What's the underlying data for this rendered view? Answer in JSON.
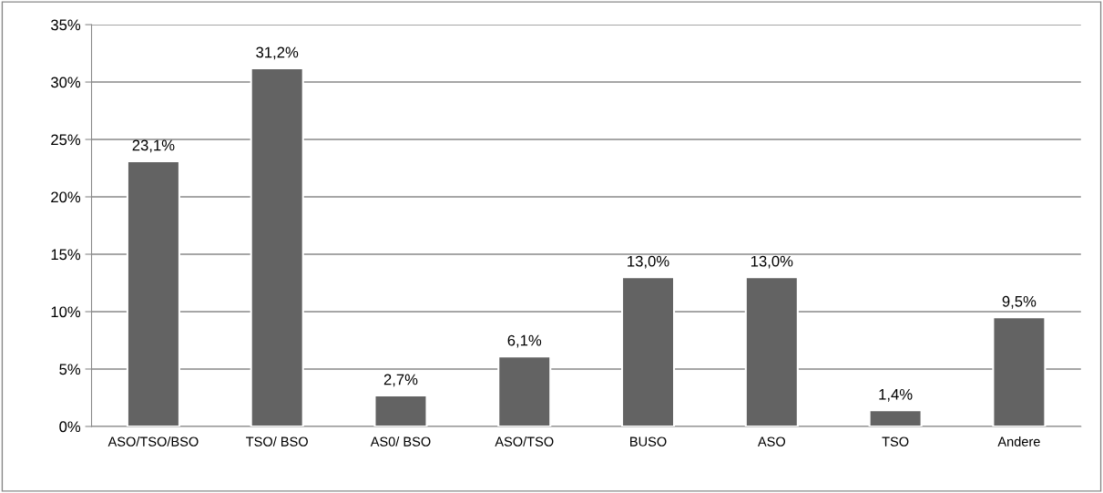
{
  "chart_data": {
    "type": "bar",
    "categories": [
      "ASO/TSO/BSO",
      "TSO/ BSO",
      "AS0/ BSO",
      "ASO/TSO",
      "BUSO",
      "ASO",
      "TSO",
      "Andere"
    ],
    "values": [
      23.1,
      31.2,
      2.7,
      6.1,
      13.0,
      13.0,
      1.4,
      9.5
    ],
    "value_labels": [
      "23,1%",
      "31,2%",
      "2,7%",
      "6,1%",
      "13,0%",
      "13,0%",
      "1,4%",
      "9,5%"
    ],
    "color": "#636363",
    "ylim": [
      0,
      35
    ],
    "yticks": [
      {
        "value": 0,
        "label": "0%"
      },
      {
        "value": 5,
        "label": "5%"
      },
      {
        "value": 10,
        "label": "10%"
      },
      {
        "value": 15,
        "label": "15%"
      },
      {
        "value": 20,
        "label": "20%"
      },
      {
        "value": 25,
        "label": "25%"
      },
      {
        "value": 30,
        "label": "30%"
      },
      {
        "value": 35,
        "label": "35%"
      }
    ],
    "grid": "y"
  }
}
